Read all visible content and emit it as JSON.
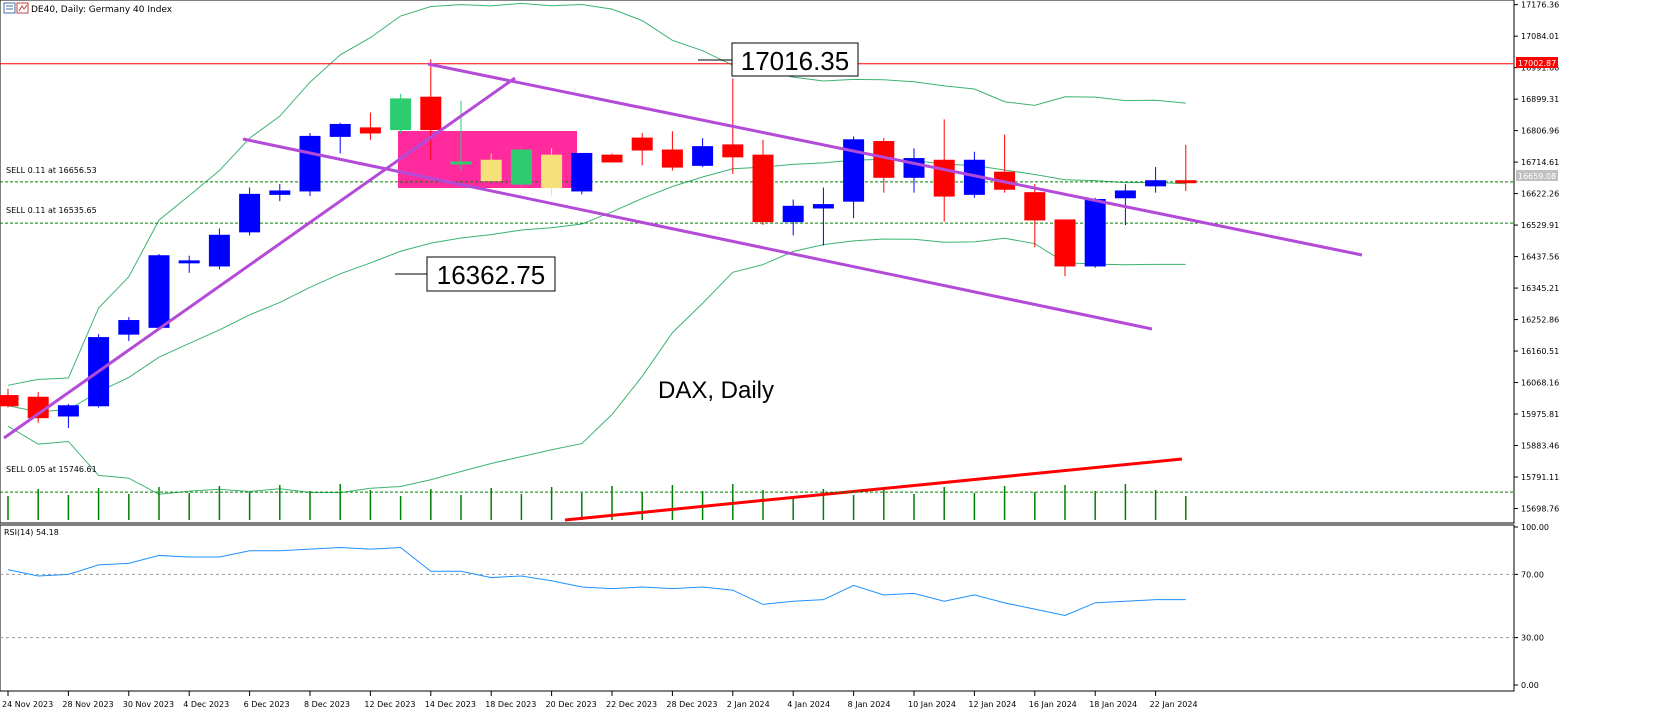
{
  "header": {
    "symbol_text": "DE40, Daily:  Germany 40 Index"
  },
  "annotations": {
    "high_label": "17016.35",
    "low_label": "16362.75",
    "watermark": "DAX, Daily",
    "sell_1": "SELL 0.11 at 16656.53",
    "sell_2": "SELL 0.11 at 16535.65",
    "sell_3": "SELL 0.05 at 15746.61",
    "current_price": "16659.08",
    "hline_price": "17002.87"
  },
  "rsi": {
    "label": "RSI(14) 54.18",
    "levels": [
      "100.00",
      "70.00",
      "30.00",
      "0.00"
    ]
  },
  "colors": {
    "bull": "#0000ff",
    "bear": "#ff0000",
    "bb": "#3cb371",
    "channel": "#b44bd8",
    "rsi_line": "#1e90ff",
    "volume": "#008000",
    "consolidation_box": "#ff1493"
  },
  "chart_data": {
    "type": "candlestick",
    "title": "DE40, Daily:  Germany 40 Index",
    "y_axis_ticks": [
      "17176.36",
      "17084.01",
      "16991.66",
      "16899.31",
      "16806.96",
      "16714.61",
      "16622.26",
      "16529.91",
      "16437.56",
      "16345.21",
      "16252.86",
      "16160.51",
      "16068.16",
      "15975.81",
      "15883.46",
      "15791.11",
      "15698.76"
    ],
    "ylim": [
      15665,
      17190
    ],
    "x_tick_labels": [
      "24 Nov 2023",
      "28 Nov 2023",
      "30 Nov 2023",
      "4 Dec 2023",
      "6 Dec 2023",
      "8 Dec 2023",
      "12 Dec 2023",
      "14 Dec 2023",
      "18 Dec 2023",
      "20 Dec 2023",
      "22 Dec 2023",
      "28 Dec 2023",
      "2 Jan 2024",
      "4 Jan 2024",
      "8 Jan 2024",
      "10 Jan 2024",
      "12 Jan 2024",
      "16 Jan 2024",
      "18 Jan 2024",
      "22 Jan 2024"
    ],
    "candles": [
      {
        "o": 16030,
        "h": 16050,
        "l": 15995,
        "c": 16000
      },
      {
        "o": 16025,
        "h": 16040,
        "l": 15950,
        "c": 15965
      },
      {
        "o": 15970,
        "h": 16005,
        "l": 15935,
        "c": 16000
      },
      {
        "o": 16000,
        "h": 16210,
        "l": 15995,
        "c": 16200
      },
      {
        "o": 16210,
        "h": 16260,
        "l": 16190,
        "c": 16250
      },
      {
        "o": 16230,
        "h": 16445,
        "l": 16225,
        "c": 16440
      },
      {
        "o": 16425,
        "h": 16440,
        "l": 16390,
        "c": 16425
      },
      {
        "o": 16410,
        "h": 16520,
        "l": 16400,
        "c": 16500
      },
      {
        "o": 16510,
        "h": 16640,
        "l": 16500,
        "c": 16620
      },
      {
        "o": 16620,
        "h": 16650,
        "l": 16600,
        "c": 16630
      },
      {
        "o": 16630,
        "h": 16800,
        "l": 16615,
        "c": 16790
      },
      {
        "o": 16790,
        "h": 16830,
        "l": 16740,
        "c": 16825
      },
      {
        "o": 16815,
        "h": 16860,
        "l": 16780,
        "c": 16800
      },
      {
        "o": 16810,
        "h": 16915,
        "l": 16800,
        "c": 16900
      },
      {
        "o": 16905,
        "h": 17016,
        "l": 16720,
        "c": 16810
      },
      {
        "o": 16715,
        "h": 16895,
        "l": 16690,
        "c": 16715
      },
      {
        "o": 16720,
        "h": 16740,
        "l": 16660,
        "c": 16660
      },
      {
        "o": 16650,
        "h": 16760,
        "l": 16640,
        "c": 16750
      },
      {
        "o": 16735,
        "h": 16755,
        "l": 16615,
        "c": 16640
      },
      {
        "o": 16630,
        "h": 16740,
        "l": 16620,
        "c": 16740
      },
      {
        "o": 16735,
        "h": 16740,
        "l": 16715,
        "c": 16715
      },
      {
        "o": 16785,
        "h": 16800,
        "l": 16705,
        "c": 16750
      },
      {
        "o": 16750,
        "h": 16805,
        "l": 16690,
        "c": 16700
      },
      {
        "o": 16705,
        "h": 16785,
        "l": 16700,
        "c": 16760
      },
      {
        "o": 16765,
        "h": 16960,
        "l": 16680,
        "c": 16730
      },
      {
        "o": 16735,
        "h": 16780,
        "l": 16530,
        "c": 16540
      },
      {
        "o": 16540,
        "h": 16605,
        "l": 16500,
        "c": 16585
      },
      {
        "o": 16580,
        "h": 16640,
        "l": 16470,
        "c": 16590
      },
      {
        "o": 16600,
        "h": 16790,
        "l": 16550,
        "c": 16780
      },
      {
        "o": 16775,
        "h": 16785,
        "l": 16625,
        "c": 16670
      },
      {
        "o": 16670,
        "h": 16755,
        "l": 16625,
        "c": 16725
      },
      {
        "o": 16720,
        "h": 16840,
        "l": 16540,
        "c": 16615
      },
      {
        "o": 16620,
        "h": 16745,
        "l": 16610,
        "c": 16720
      },
      {
        "o": 16685,
        "h": 16795,
        "l": 16625,
        "c": 16635
      },
      {
        "o": 16625,
        "h": 16650,
        "l": 16465,
        "c": 16545
      },
      {
        "o": 16545,
        "h": 16545,
        "l": 16380,
        "c": 16410
      },
      {
        "o": 16410,
        "h": 16610,
        "l": 16405,
        "c": 16605
      },
      {
        "o": 16610,
        "h": 16650,
        "l": 16530,
        "c": 16630
      },
      {
        "o": 16645,
        "h": 16700,
        "l": 16625,
        "c": 16660
      },
      {
        "o": 16660,
        "h": 16765,
        "l": 16630,
        "c": 16659
      }
    ],
    "rsi_values": [
      73,
      69,
      70,
      76,
      77,
      82,
      81,
      81,
      85,
      85,
      86,
      87,
      86,
      87,
      72,
      72,
      68,
      69,
      66,
      62,
      61,
      62,
      61,
      62,
      60,
      51,
      53,
      54,
      63,
      57,
      58,
      53,
      57,
      52,
      48,
      44,
      52,
      53,
      54,
      54
    ],
    "hlines": [
      17002.87,
      16656.53,
      16535.65,
      15746.61
    ]
  }
}
